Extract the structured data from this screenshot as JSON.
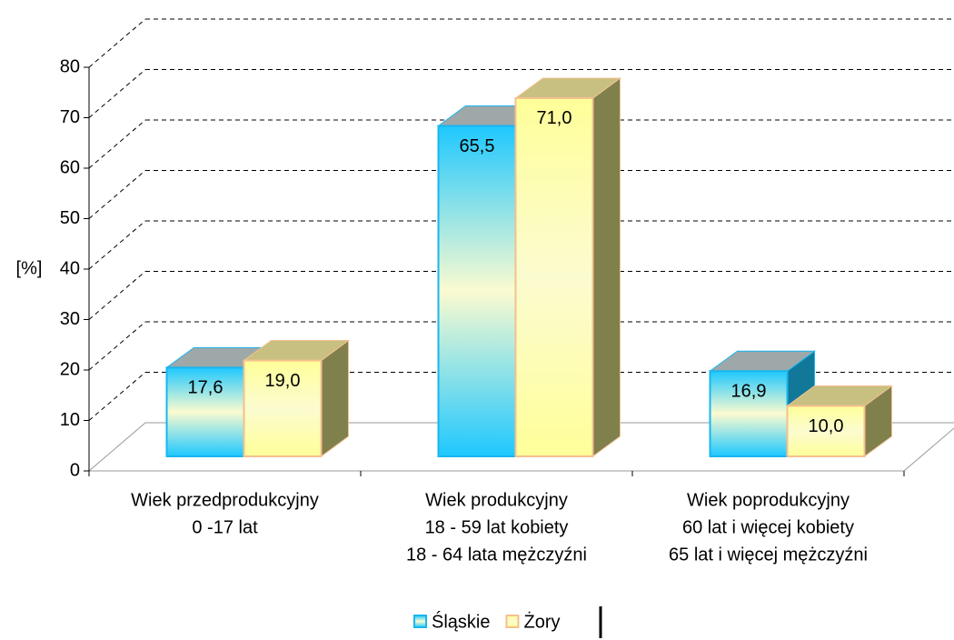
{
  "chart_data": {
    "type": "bar3d",
    "ylabel": "[%]",
    "categories": [
      [
        "Wiek przedprodukcyjny",
        "0 -17 lat"
      ],
      [
        "Wiek produkcyjny",
        "18 - 59 lat kobiety",
        "18 - 64 lata mężczyźni"
      ],
      [
        "Wiek poprodukcyjny",
        "60 lat i więcej kobiety",
        "65 lat i więcej mężczyźni"
      ]
    ],
    "series": [
      {
        "name": "Śląskie",
        "color": "#1ec8ff",
        "values": [
          17.6,
          65.5,
          16.9
        ],
        "value_labels": [
          "17,6",
          "65,5",
          "16,9"
        ]
      },
      {
        "name": "Żory",
        "color": "#ffff99",
        "values": [
          19.0,
          71.0,
          10.0
        ],
        "value_labels": [
          "19,0",
          "71,0",
          "10,0"
        ]
      }
    ],
    "ylim": [
      0,
      80
    ],
    "yticks": [
      0,
      10,
      20,
      30,
      40,
      50,
      60,
      70,
      80
    ],
    "grid": true,
    "legend": "bottom"
  }
}
